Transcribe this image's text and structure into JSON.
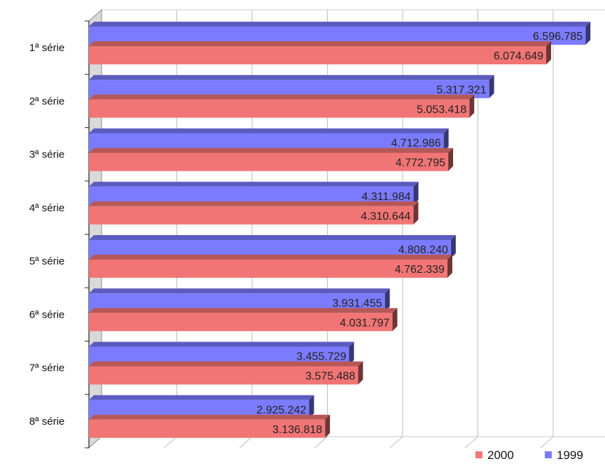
{
  "chart_data": {
    "type": "bar",
    "orientation": "horizontal",
    "three_d": true,
    "title": "",
    "xlabel": "",
    "ylabel": "",
    "categories": [
      "1ª série",
      "2ª série",
      "3ª série",
      "4ª série",
      "5ª série",
      "6ª série",
      "7ª série",
      "8ª série"
    ],
    "series": [
      {
        "name": "1999",
        "color": "#7B7BFF",
        "values": [
          6596785,
          5317321,
          4712986,
          4311984,
          4808240,
          3931455,
          3455729,
          2925242
        ],
        "labels": [
          "6.596.785",
          "5.317.321",
          "4.712.986",
          "4.311.984",
          "4.808.240",
          "3.931.455",
          "3.455.729",
          "2.925.242"
        ]
      },
      {
        "name": "2000",
        "color": "#F27575",
        "values": [
          6074649,
          5053418,
          4772795,
          4310644,
          4762339,
          4031797,
          3575488,
          3136818
        ],
        "labels": [
          "6.074.649",
          "5.053.418",
          "4.772.795",
          "4.310.644",
          "4.762.339",
          "4.031.797",
          "3.575.488",
          "3.136.818"
        ]
      }
    ],
    "xlim": [
      0,
      7000000
    ],
    "grid": true,
    "legend": {
      "position": "bottom-right",
      "order": [
        "2000",
        "1999"
      ]
    }
  }
}
